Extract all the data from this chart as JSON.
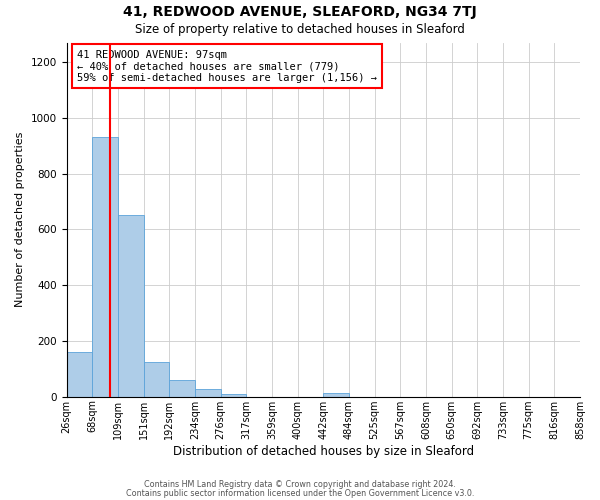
{
  "title": "41, REDWOOD AVENUE, SLEAFORD, NG34 7TJ",
  "subtitle": "Size of property relative to detached houses in Sleaford",
  "xlabel": "Distribution of detached houses by size in Sleaford",
  "ylabel": "Number of detached properties",
  "bar_values": [
    160,
    930,
    650,
    125,
    60,
    28,
    10,
    0,
    0,
    0,
    12,
    0,
    0,
    0,
    0,
    0,
    0,
    0,
    0,
    0
  ],
  "bin_labels": [
    "26sqm",
    "68sqm",
    "109sqm",
    "151sqm",
    "192sqm",
    "234sqm",
    "276sqm",
    "317sqm",
    "359sqm",
    "400sqm",
    "442sqm",
    "484sqm",
    "525sqm",
    "567sqm",
    "608sqm",
    "650sqm",
    "692sqm",
    "733sqm",
    "775sqm",
    "816sqm",
    "858sqm"
  ],
  "bar_color": "#aecde8",
  "bar_edge_color": "#5ba3d9",
  "vline_color": "red",
  "vline_bin": 1,
  "annotation_text": "41 REDWOOD AVENUE: 97sqm\n← 40% of detached houses are smaller (779)\n59% of semi-detached houses are larger (1,156) →",
  "annotation_box_color": "white",
  "annotation_box_edge": "red",
  "ylim": [
    0,
    1270
  ],
  "yticks": [
    0,
    200,
    400,
    600,
    800,
    1000,
    1200
  ],
  "background_color": "white",
  "grid_color": "#cccccc",
  "footer1": "Contains HM Land Registry data © Crown copyright and database right 2024.",
  "footer2": "Contains public sector information licensed under the Open Government Licence v3.0.",
  "title_fontsize": 10,
  "subtitle_fontsize": 8.5,
  "ylabel_fontsize": 8,
  "xlabel_fontsize": 8.5,
  "tick_fontsize": 7,
  "footer_fontsize": 5.8,
  "annot_fontsize": 7.5
}
